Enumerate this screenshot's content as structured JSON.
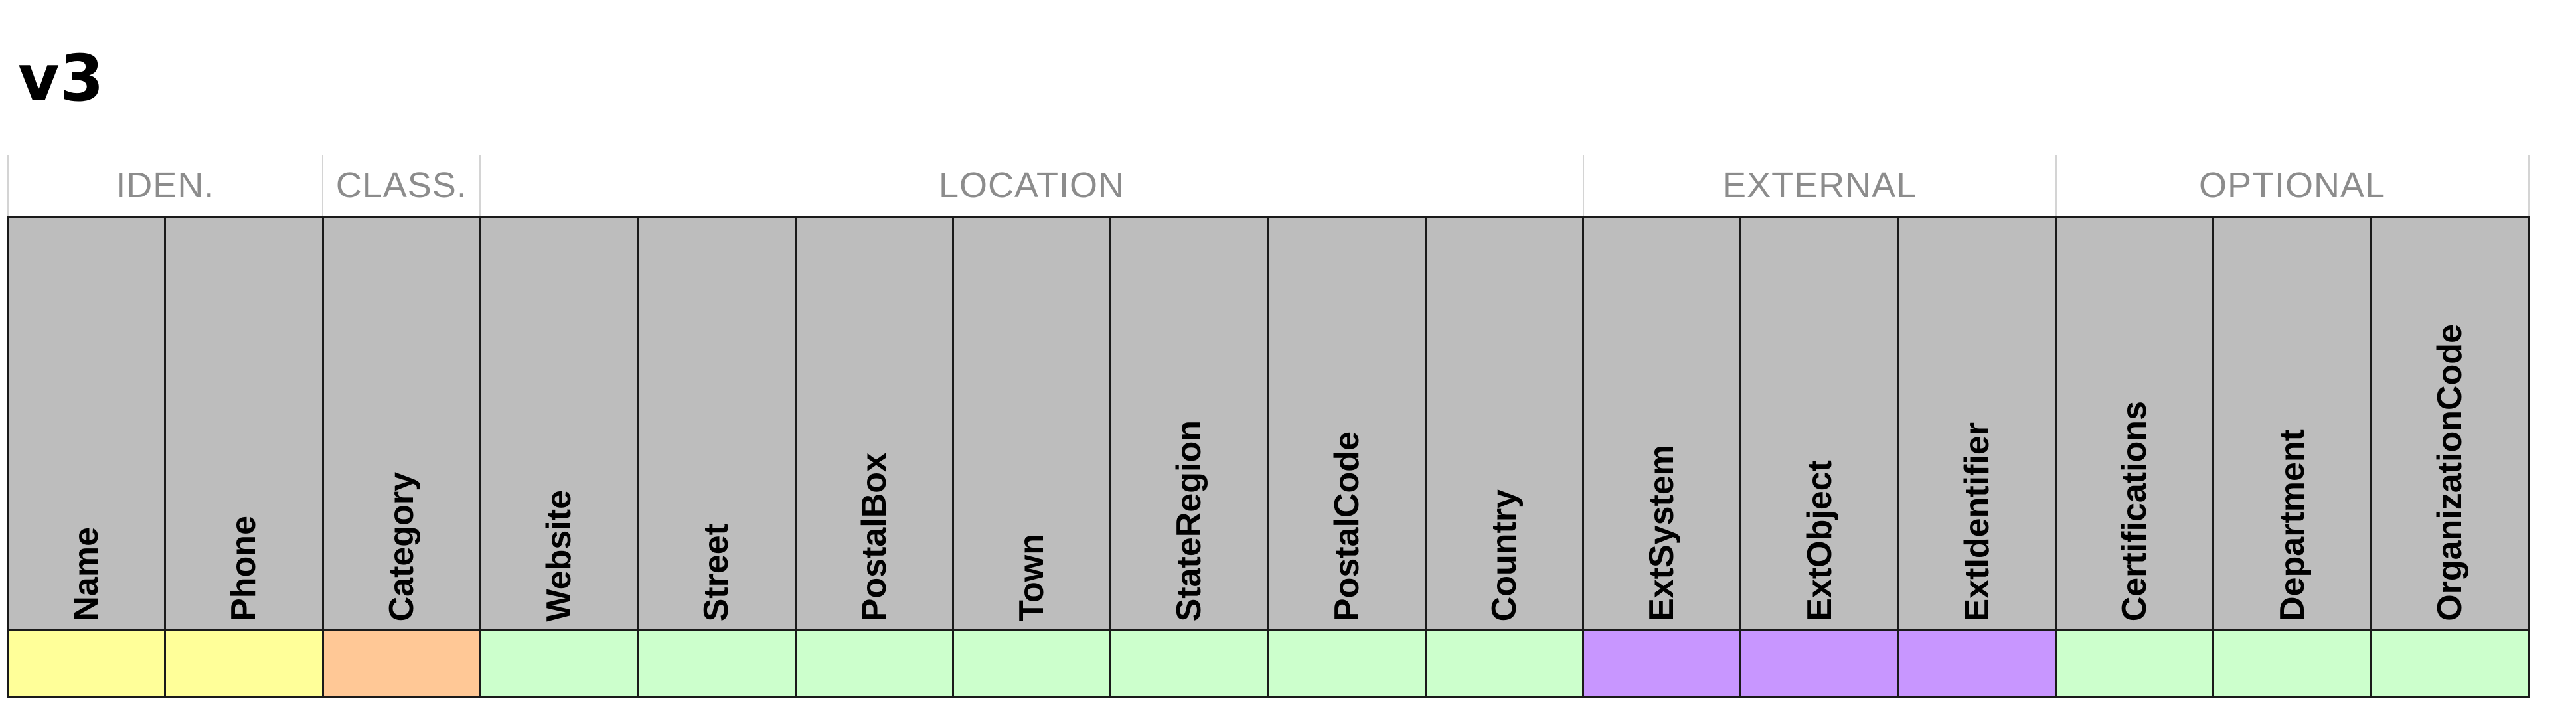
{
  "title": "v3",
  "groups": [
    {
      "label": "IDEN.",
      "span": 2
    },
    {
      "label": "CLASS.",
      "span": 1
    },
    {
      "label": "LOCATION",
      "span": 7
    },
    {
      "label": "EXTERNAL",
      "span": 3
    },
    {
      "label": "OPTIONAL",
      "span": 3
    }
  ],
  "columns": [
    {
      "name": "Name",
      "color": "#ffff99"
    },
    {
      "name": "Phone",
      "color": "#ffff99"
    },
    {
      "name": "Category",
      "color": "#ffc896"
    },
    {
      "name": "Website",
      "color": "#ccffcc"
    },
    {
      "name": "Street",
      "color": "#ccffcc"
    },
    {
      "name": "PostalBox",
      "color": "#ccffcc"
    },
    {
      "name": "Town",
      "color": "#ccffcc"
    },
    {
      "name": "StateRegion",
      "color": "#ccffcc"
    },
    {
      "name": "PostalCode",
      "color": "#ccffcc"
    },
    {
      "name": "Country",
      "color": "#ccffcc"
    },
    {
      "name": "ExtSystem",
      "color": "#c896ff"
    },
    {
      "name": "ExtObject",
      "color": "#c896ff"
    },
    {
      "name": "ExtIdentifier",
      "color": "#c896ff"
    },
    {
      "name": "Certifications",
      "color": "#ccffcc"
    },
    {
      "name": "Department",
      "color": "#ccffcc"
    },
    {
      "name": "OrganizationCode",
      "color": "#ccffcc"
    }
  ]
}
